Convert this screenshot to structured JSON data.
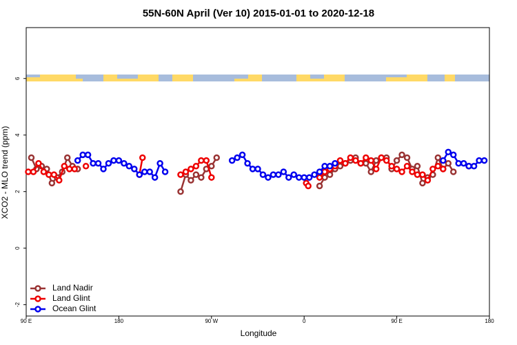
{
  "chart_data": {
    "type": "line",
    "title": "55N-60N April (Ver 10)   2015-01-01 to 2020-12-18",
    "x_label": "Longitude",
    "y_label": "XCO2 - MLO trend (ppm)",
    "xlim": [
      90,
      540
    ],
    "ylim": [
      -2.4,
      7.8
    ],
    "xticks": [
      {
        "value": 90,
        "label": "90 E"
      },
      {
        "value": 180,
        "label": "180"
      },
      {
        "value": 270,
        "label": "90 W"
      },
      {
        "value": 360,
        "label": "0"
      },
      {
        "value": 450,
        "label": "90 E"
      },
      {
        "value": 540,
        "label": "180"
      }
    ],
    "yticks": [
      -2,
      0,
      2,
      4,
      6
    ],
    "legend": "bottom-left",
    "series": [
      {
        "name": "Land Nadir",
        "color": "#993333",
        "x": [
          95,
          100,
          105,
          110,
          115,
          120,
          125,
          130,
          135,
          140,
          190,
          240,
          245,
          250,
          255,
          260,
          265,
          270,
          275,
          325,
          375,
          380,
          385,
          390,
          395,
          400,
          405,
          410,
          415,
          420,
          425,
          430,
          435,
          440,
          445,
          450,
          455,
          460,
          465,
          470,
          475,
          480,
          485,
          490,
          495,
          500,
          505,
          512,
          520
        ],
        "values": [
          3.2,
          2.8,
          2.9,
          2.8,
          2.3,
          2.5,
          2.7,
          3.2,
          2.9,
          2.8,
          null,
          2.0,
          2.6,
          2.4,
          2.6,
          2.5,
          2.8,
          2.9,
          3.2,
          null,
          2.2,
          2.5,
          2.6,
          2.8,
          2.9,
          3.0,
          3.1,
          3.2,
          3.0,
          3.0,
          2.7,
          3.1,
          3.2,
          3.2,
          2.8,
          3.1,
          3.3,
          3.2,
          2.8,
          2.9,
          2.3,
          2.5,
          2.6,
          3.2,
          2.8,
          3.0,
          2.7,
          null,
          2.9
        ]
      },
      {
        "name": "Land Glint",
        "color": "#ee0000",
        "x": [
          92,
          97,
          102,
          107,
          112,
          117,
          122,
          127,
          132,
          137,
          142,
          148,
          175,
          200,
          203,
          220,
          240,
          245,
          250,
          255,
          260,
          265,
          270,
          315,
          362,
          364,
          370,
          375,
          380,
          385,
          390,
          395,
          400,
          405,
          410,
          415,
          420,
          425,
          430,
          435,
          440,
          445,
          450,
          455,
          460,
          465,
          470,
          475,
          480,
          485,
          490,
          495,
          510,
          520
        ],
        "values": [
          2.7,
          2.7,
          3.0,
          2.7,
          2.6,
          2.6,
          2.4,
          2.9,
          2.8,
          2.8,
          null,
          2.9,
          null,
          2.6,
          3.2,
          null,
          2.6,
          2.7,
          2.8,
          2.9,
          3.1,
          3.1,
          2.5,
          null,
          2.3,
          2.2,
          null,
          2.5,
          2.7,
          2.8,
          2.9,
          3.1,
          3.0,
          3.2,
          3.1,
          3.0,
          3.2,
          3.1,
          2.8,
          3.2,
          3.1,
          2.9,
          2.8,
          2.7,
          2.9,
          2.7,
          2.6,
          2.6,
          2.4,
          2.8,
          2.9,
          2.8,
          null,
          2.9
        ]
      },
      {
        "name": "Ocean Glint",
        "color": "#0000ee",
        "x": [
          140,
          145,
          150,
          155,
          160,
          165,
          170,
          175,
          180,
          185,
          190,
          195,
          200,
          205,
          210,
          215,
          220,
          225,
          260,
          290,
          295,
          300,
          305,
          310,
          315,
          320,
          325,
          330,
          335,
          340,
          345,
          350,
          355,
          360,
          365,
          370,
          375,
          380,
          385,
          390,
          440,
          495,
          500,
          505,
          510,
          515,
          520,
          525,
          530,
          535
        ],
        "values": [
          3.1,
          3.3,
          3.3,
          3.0,
          3.0,
          2.8,
          3.0,
          3.1,
          3.1,
          3.0,
          2.9,
          2.8,
          2.6,
          2.7,
          2.7,
          2.5,
          3.0,
          2.7,
          null,
          3.1,
          3.2,
          3.3,
          3.0,
          2.8,
          2.8,
          2.6,
          2.5,
          2.6,
          2.6,
          2.7,
          2.5,
          2.6,
          2.5,
          2.5,
          2.5,
          2.6,
          2.7,
          2.9,
          2.9,
          3.0,
          null,
          3.1,
          3.4,
          3.3,
          3.0,
          3.0,
          2.9,
          2.9,
          3.1,
          3.1
        ]
      }
    ]
  }
}
